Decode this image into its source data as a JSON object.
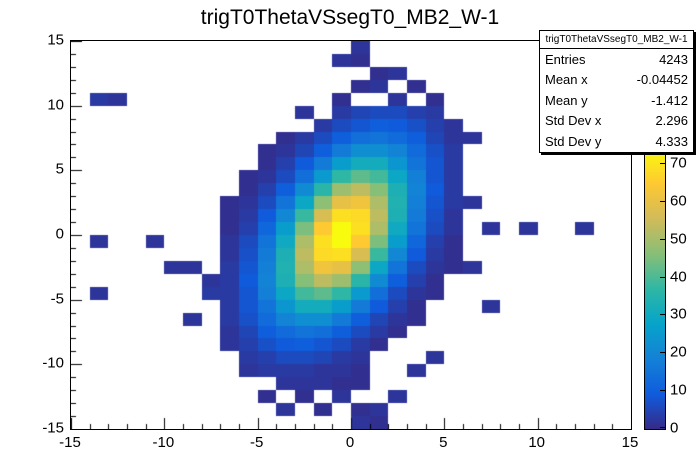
{
  "chart_data": {
    "type": "heatmap",
    "title": "trigT0ThetaVSsegT0_MB2_W-1",
    "grid": false,
    "legend_position": "right-color-scale",
    "x_axis": {
      "range": [
        -15,
        15
      ],
      "major_ticks": [
        -15,
        -10,
        -5,
        0,
        5,
        10,
        15
      ],
      "labels": [
        "-15",
        "-10",
        "-5",
        "0",
        "5",
        "10",
        "15"
      ],
      "minor_step": 1,
      "bins": 30
    },
    "y_axis": {
      "range": [
        -15,
        15
      ],
      "major_ticks": [
        -15,
        -10,
        -5,
        0,
        5,
        10,
        15
      ],
      "labels": [
        "-15",
        "-10",
        "-5",
        "0",
        "5",
        "10",
        "15"
      ],
      "minor_step": 1,
      "bins": 30
    },
    "z_axis": {
      "min": 0,
      "max": 74,
      "ticks": [
        0,
        10,
        20,
        30,
        40,
        50,
        60,
        70
      ],
      "labels": [
        "0",
        "10",
        "20",
        "30",
        "40",
        "50",
        "60",
        "70"
      ]
    },
    "bins": [
      [
        0,
        0,
        0,
        0,
        0,
        0,
        0,
        0,
        0,
        0,
        0,
        0,
        0,
        0,
        0,
        2,
        0,
        0,
        0,
        0,
        0,
        0,
        0,
        0,
        0,
        0,
        0,
        0,
        0,
        0
      ],
      [
        0,
        0,
        0,
        0,
        0,
        0,
        0,
        0,
        0,
        0,
        0,
        0,
        0,
        0,
        2,
        1,
        0,
        0,
        0,
        0,
        0,
        0,
        0,
        0,
        0,
        0,
        0,
        0,
        0,
        0
      ],
      [
        0,
        0,
        0,
        0,
        0,
        0,
        0,
        0,
        0,
        0,
        0,
        0,
        0,
        0,
        0,
        0,
        1,
        2,
        0,
        0,
        0,
        0,
        0,
        0,
        0,
        0,
        0,
        0,
        0,
        0
      ],
      [
        0,
        0,
        0,
        0,
        0,
        0,
        0,
        0,
        0,
        0,
        0,
        0,
        0,
        0,
        0,
        1,
        2,
        0,
        1,
        0,
        0,
        0,
        0,
        0,
        0,
        0,
        0,
        0,
        0,
        0
      ],
      [
        0,
        3,
        2,
        0,
        0,
        0,
        0,
        0,
        0,
        0,
        0,
        0,
        0,
        0,
        1,
        0,
        0,
        2,
        0,
        1,
        0,
        0,
        0,
        0,
        0,
        0,
        0,
        0,
        0,
        0
      ],
      [
        0,
        0,
        0,
        0,
        0,
        0,
        0,
        0,
        0,
        0,
        0,
        0,
        2,
        0,
        3,
        5,
        6,
        6,
        4,
        3,
        0,
        0,
        0,
        0,
        0,
        0,
        0,
        0,
        0,
        0
      ],
      [
        0,
        0,
        0,
        0,
        0,
        0,
        0,
        0,
        0,
        0,
        0,
        0,
        0,
        3,
        6,
        8,
        10,
        9,
        7,
        4,
        2,
        0,
        0,
        0,
        0,
        0,
        0,
        0,
        0,
        0
      ],
      [
        0,
        0,
        0,
        0,
        0,
        0,
        0,
        0,
        0,
        0,
        0,
        1,
        3,
        6,
        10,
        14,
        15,
        13,
        10,
        5,
        2,
        2,
        0,
        0,
        0,
        0,
        0,
        0,
        0,
        0
      ],
      [
        0,
        0,
        0,
        0,
        0,
        0,
        0,
        0,
        0,
        0,
        1,
        2,
        5,
        10,
        17,
        22,
        22,
        19,
        13,
        7,
        3,
        0,
        0,
        0,
        0,
        0,
        0,
        0,
        0,
        0
      ],
      [
        0,
        0,
        0,
        0,
        0,
        0,
        0,
        0,
        0,
        0,
        1,
        4,
        9,
        17,
        26,
        31,
        31,
        24,
        15,
        8,
        3,
        0,
        0,
        0,
        0,
        0,
        0,
        0,
        0,
        0
      ],
      [
        0,
        0,
        0,
        0,
        0,
        0,
        0,
        0,
        0,
        1,
        2,
        6,
        14,
        25,
        37,
        42,
        39,
        29,
        18,
        8,
        3,
        0,
        0,
        0,
        0,
        0,
        0,
        0,
        0,
        0
      ],
      [
        0,
        0,
        0,
        0,
        0,
        0,
        0,
        0,
        0,
        1,
        4,
        10,
        21,
        36,
        49,
        53,
        46,
        33,
        19,
        9,
        3,
        0,
        0,
        0,
        0,
        0,
        0,
        0,
        0,
        0
      ],
      [
        0,
        0,
        0,
        0,
        0,
        0,
        0,
        0,
        1,
        2,
        6,
        15,
        29,
        47,
        60,
        62,
        51,
        34,
        18,
        8,
        3,
        2,
        0,
        0,
        0,
        0,
        0,
        0,
        0,
        0
      ],
      [
        0,
        0,
        0,
        0,
        0,
        0,
        0,
        0,
        1,
        3,
        9,
        20,
        38,
        57,
        69,
        68,
        53,
        33,
        17,
        7,
        2,
        0,
        0,
        0,
        0,
        0,
        0,
        0,
        0,
        0
      ],
      [
        0,
        0,
        0,
        0,
        0,
        0,
        0,
        0,
        1,
        4,
        12,
        26,
        45,
        65,
        74,
        69,
        51,
        30,
        15,
        6,
        2,
        0,
        2,
        0,
        2,
        0,
        0,
        2,
        0,
        0
      ],
      [
        0,
        2,
        0,
        0,
        2,
        0,
        0,
        0,
        2,
        6,
        15,
        30,
        51,
        69,
        74,
        65,
        45,
        26,
        12,
        4,
        1,
        0,
        0,
        0,
        0,
        0,
        0,
        0,
        0,
        0
      ],
      [
        0,
        0,
        0,
        0,
        0,
        0,
        0,
        0,
        2,
        7,
        17,
        33,
        53,
        68,
        69,
        57,
        38,
        20,
        9,
        3,
        1,
        0,
        0,
        0,
        0,
        0,
        0,
        0,
        0,
        0
      ],
      [
        0,
        0,
        0,
        0,
        0,
        2,
        2,
        0,
        3,
        8,
        18,
        34,
        51,
        62,
        60,
        47,
        29,
        15,
        6,
        2,
        1,
        2,
        0,
        0,
        0,
        0,
        0,
        0,
        0,
        0
      ],
      [
        0,
        0,
        0,
        0,
        0,
        0,
        0,
        2,
        3,
        9,
        19,
        33,
        46,
        53,
        49,
        36,
        21,
        10,
        4,
        1,
        0,
        0,
        0,
        0,
        0,
        0,
        0,
        0,
        0,
        0
      ],
      [
        0,
        2,
        0,
        0,
        0,
        0,
        0,
        3,
        3,
        8,
        18,
        29,
        39,
        42,
        37,
        25,
        14,
        6,
        2,
        1,
        0,
        0,
        0,
        0,
        0,
        0,
        0,
        0,
        0,
        0
      ],
      [
        0,
        0,
        0,
        0,
        0,
        0,
        0,
        0,
        3,
        8,
        15,
        24,
        31,
        31,
        26,
        17,
        9,
        4,
        1,
        0,
        0,
        0,
        2,
        0,
        0,
        0,
        0,
        0,
        0,
        0
      ],
      [
        0,
        0,
        0,
        0,
        0,
        0,
        2,
        0,
        3,
        7,
        13,
        19,
        22,
        22,
        17,
        10,
        5,
        2,
        1,
        0,
        0,
        0,
        0,
        0,
        0,
        0,
        0,
        0,
        0,
        0
      ],
      [
        0,
        0,
        0,
        0,
        0,
        0,
        0,
        0,
        2,
        5,
        10,
        13,
        15,
        14,
        10,
        6,
        3,
        1,
        0,
        0,
        0,
        0,
        0,
        0,
        0,
        0,
        0,
        0,
        0,
        0
      ],
      [
        0,
        0,
        0,
        0,
        0,
        0,
        0,
        0,
        2,
        4,
        7,
        9,
        10,
        8,
        6,
        3,
        1,
        0,
        0,
        0,
        0,
        0,
        0,
        0,
        0,
        0,
        0,
        0,
        0,
        0
      ],
      [
        0,
        0,
        0,
        0,
        0,
        0,
        0,
        0,
        0,
        3,
        4,
        6,
        6,
        5,
        3,
        2,
        0,
        0,
        0,
        2,
        0,
        0,
        0,
        0,
        0,
        0,
        0,
        0,
        0,
        0
      ],
      [
        0,
        0,
        0,
        0,
        0,
        0,
        0,
        0,
        0,
        2,
        3,
        3,
        3,
        2,
        2,
        1,
        0,
        0,
        2,
        0,
        0,
        0,
        0,
        0,
        0,
        0,
        0,
        0,
        0,
        0
      ],
      [
        0,
        0,
        0,
        0,
        0,
        0,
        0,
        0,
        0,
        0,
        0,
        2,
        2,
        2,
        1,
        1,
        0,
        0,
        0,
        0,
        0,
        0,
        0,
        0,
        0,
        0,
        0,
        0,
        0,
        0
      ],
      [
        0,
        0,
        0,
        0,
        0,
        0,
        0,
        0,
        0,
        0,
        1,
        0,
        1,
        0,
        2,
        0,
        0,
        2,
        0,
        0,
        0,
        0,
        0,
        0,
        0,
        0,
        0,
        0,
        0,
        0
      ],
      [
        0,
        0,
        0,
        0,
        0,
        0,
        0,
        0,
        0,
        0,
        0,
        2,
        0,
        1,
        0,
        1,
        2,
        0,
        0,
        0,
        0,
        0,
        0,
        0,
        0,
        0,
        0,
        0,
        0,
        0
      ],
      [
        0,
        0,
        0,
        0,
        0,
        0,
        0,
        0,
        0,
        0,
        0,
        0,
        0,
        0,
        0,
        2,
        1,
        0,
        0,
        0,
        0,
        0,
        0,
        0,
        0,
        0,
        0,
        0,
        0,
        0
      ]
    ],
    "palette": {
      "stops": [
        {
          "pos": 0.0,
          "color": "#352a87"
        },
        {
          "pos": 0.125,
          "color": "#0f5cdd"
        },
        {
          "pos": 0.25,
          "color": "#1481d6"
        },
        {
          "pos": 0.375,
          "color": "#06a4ca"
        },
        {
          "pos": 0.5,
          "color": "#2eb7a4"
        },
        {
          "pos": 0.625,
          "color": "#87bf77"
        },
        {
          "pos": 0.75,
          "color": "#d1bb59"
        },
        {
          "pos": 0.875,
          "color": "#fec832"
        },
        {
          "pos": 1.0,
          "color": "#f9fb0e"
        }
      ]
    }
  },
  "stats": {
    "title": "trigT0ThetaVSsegT0_MB2_W-1",
    "rows": [
      {
        "label": "Entries",
        "value": "4243"
      },
      {
        "label": "Mean x",
        "value": "-0.04452"
      },
      {
        "label": "Mean y",
        "value": "-1.412"
      },
      {
        "label": "Std Dev x",
        "value": "2.296"
      },
      {
        "label": "Std Dev y",
        "value": "4.333"
      }
    ]
  },
  "colors": {
    "background": "#ffffff",
    "frame_border": "#000000",
    "text": "#000000"
  }
}
